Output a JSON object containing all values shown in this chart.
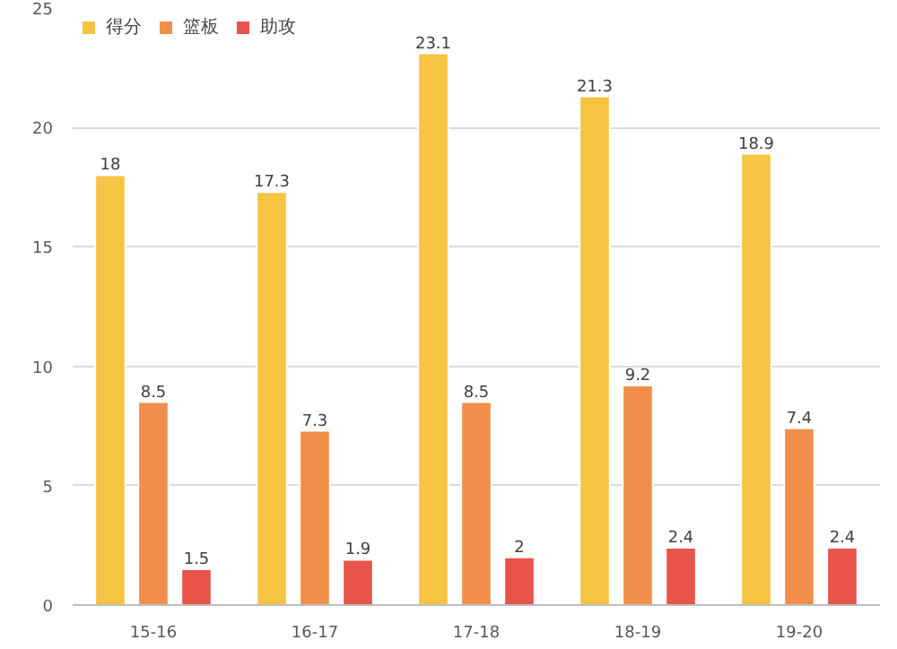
{
  "chart_data": {
    "type": "bar",
    "categories": [
      "15-16",
      "16-17",
      "17-18",
      "18-19",
      "19-20"
    ],
    "series": [
      {
        "name": "得分",
        "color": "#f6c343",
        "values": [
          18,
          17.3,
          23.1,
          21.3,
          18.9
        ]
      },
      {
        "name": "篮板",
        "color": "#f28e4c",
        "values": [
          8.5,
          7.3,
          8.5,
          9.2,
          7.4
        ]
      },
      {
        "name": "助攻",
        "color": "#e8534a",
        "values": [
          1.5,
          1.9,
          2,
          2.4,
          2.4
        ]
      }
    ],
    "ylim": [
      0,
      25
    ],
    "yticks": [
      0,
      5,
      10,
      15,
      20,
      25
    ],
    "grid": "y",
    "legend": "top left",
    "data_labels": true
  }
}
